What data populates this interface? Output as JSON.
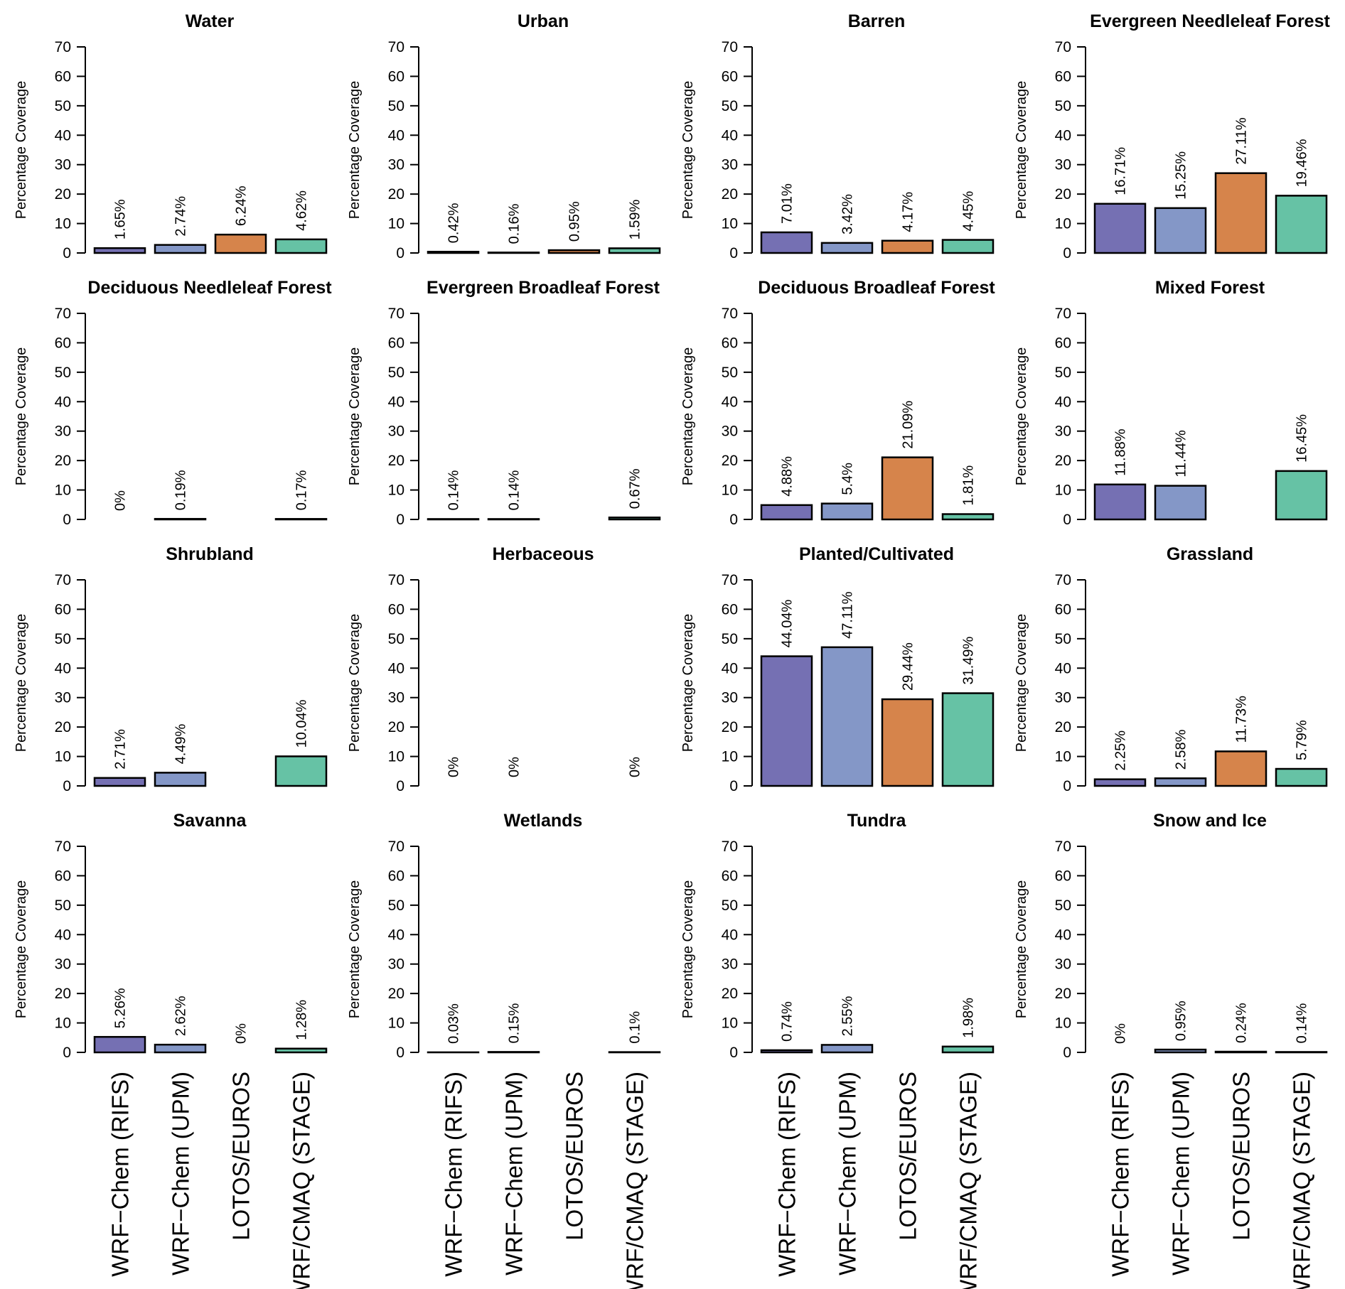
{
  "colors": {
    "WRF-Chem (RIFS)": "#7570b3",
    "WRF-Chem (UPM)": "#8497c7",
    "LOTOS/EUROS": "#d6844b",
    "WRF/CMAQ (STAGE)": "#66c2a5"
  },
  "chart_data": {
    "type": "bar",
    "ylabel": "Percentage Coverage",
    "ylim": [
      0,
      70
    ],
    "yticks": [
      0,
      10,
      20,
      30,
      40,
      50,
      60,
      70
    ],
    "categories": [
      "WRF−Chem (RIFS)",
      "WRF−Chem (UPM)",
      "LOTOS/EUROS",
      "WRF/CMAQ (STAGE)"
    ],
    "series_keys": [
      "WRF-Chem (RIFS)",
      "WRF-Chem (UPM)",
      "LOTOS/EUROS",
      "WRF/CMAQ (STAGE)"
    ],
    "panels": [
      {
        "title": "Water",
        "values": [
          1.65,
          2.74,
          6.24,
          4.62
        ],
        "labels": [
          "1.65%",
          "2.74%",
          "6.24%",
          "4.62%"
        ]
      },
      {
        "title": "Urban",
        "values": [
          0.42,
          0.16,
          0.95,
          1.59
        ],
        "labels": [
          "0.42%",
          "0.16%",
          "0.95%",
          "1.59%"
        ]
      },
      {
        "title": "Barren",
        "values": [
          7.01,
          3.42,
          4.17,
          4.45
        ],
        "labels": [
          "7.01%",
          "3.42%",
          "4.17%",
          "4.45%"
        ]
      },
      {
        "title": "Evergreen Needleleaf Forest",
        "values": [
          16.71,
          15.25,
          27.11,
          19.46
        ],
        "labels": [
          "16.71%",
          "15.25%",
          "27.11%",
          "19.46%"
        ]
      },
      {
        "title": "Deciduous Needleleaf Forest",
        "values": [
          0,
          0.19,
          null,
          0.17
        ],
        "labels": [
          "0%",
          "0.19%",
          null,
          "0.17%"
        ]
      },
      {
        "title": "Evergreen Broadleaf Forest",
        "values": [
          0.14,
          0.14,
          null,
          0.67
        ],
        "labels": [
          "0.14%",
          "0.14%",
          null,
          "0.67%"
        ]
      },
      {
        "title": "Deciduous Broadleaf Forest",
        "values": [
          4.88,
          5.4,
          21.09,
          1.81
        ],
        "labels": [
          "4.88%",
          "5.4%",
          "21.09%",
          "1.81%"
        ]
      },
      {
        "title": "Mixed Forest",
        "values": [
          11.88,
          11.44,
          null,
          16.45
        ],
        "labels": [
          "11.88%",
          "11.44%",
          null,
          "16.45%"
        ]
      },
      {
        "title": "Shrubland",
        "values": [
          2.71,
          4.49,
          null,
          10.04
        ],
        "labels": [
          "2.71%",
          "4.49%",
          null,
          "10.04%"
        ]
      },
      {
        "title": "Herbaceous",
        "values": [
          0,
          0,
          null,
          0
        ],
        "labels": [
          "0%",
          "0%",
          null,
          "0%"
        ]
      },
      {
        "title": "Planted/Cultivated",
        "values": [
          44.04,
          47.11,
          29.44,
          31.49
        ],
        "labels": [
          "44.04%",
          "47.11%",
          "29.44%",
          "31.49%"
        ]
      },
      {
        "title": "Grassland",
        "values": [
          2.25,
          2.58,
          11.73,
          5.79
        ],
        "labels": [
          "2.25%",
          "2.58%",
          "11.73%",
          "5.79%"
        ]
      },
      {
        "title": "Savanna",
        "values": [
          5.26,
          2.62,
          0,
          1.28
        ],
        "labels": [
          "5.26%",
          "2.62%",
          "0%",
          "1.28%"
        ]
      },
      {
        "title": "Wetlands",
        "values": [
          0.03,
          0.15,
          null,
          0.1
        ],
        "labels": [
          "0.03%",
          "0.15%",
          null,
          "0.1%"
        ]
      },
      {
        "title": "Tundra",
        "values": [
          0.74,
          2.55,
          null,
          1.98
        ],
        "labels": [
          "0.74%",
          "2.55%",
          null,
          "1.98%"
        ]
      },
      {
        "title": "Snow and Ice",
        "values": [
          0,
          0.95,
          0.24,
          0.14
        ],
        "labels": [
          "0%",
          "0.95%",
          "0.24%",
          "0.14%"
        ]
      }
    ]
  }
}
